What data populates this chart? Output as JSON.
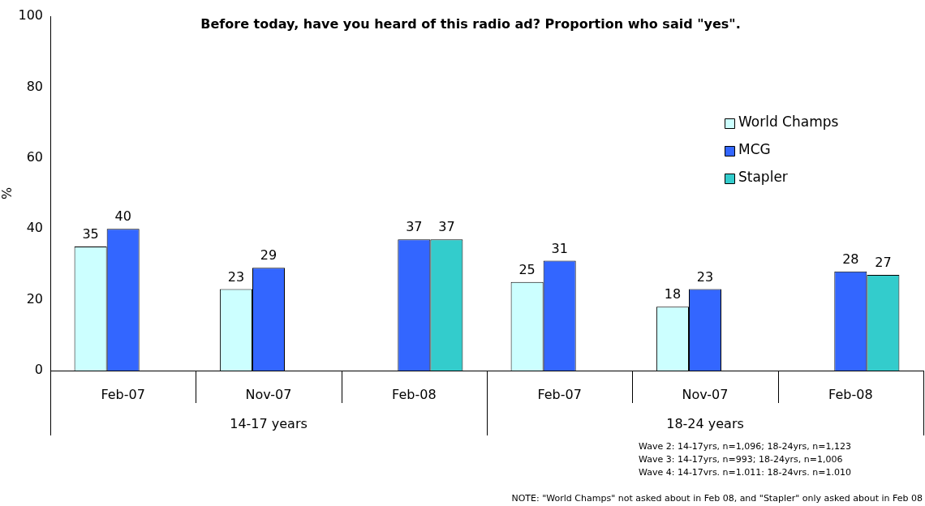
{
  "chart_data": {
    "type": "bar",
    "title": "Before today, have you heard of this radio ad? Proportion who said \"yes\".",
    "ylabel": "%",
    "categories": [
      "Feb-07",
      "Nov-07",
      "Feb-08",
      "Feb-07",
      "Nov-07",
      "Feb-08"
    ],
    "series": [
      {
        "name": "World Champs",
        "color": "#ccffff",
        "values": [
          35,
          23,
          null,
          25,
          18,
          null
        ]
      },
      {
        "name": "MCG",
        "color": "#3366ff",
        "values": [
          40,
          29,
          37,
          31,
          23,
          28
        ]
      },
      {
        "name": "Stapler",
        "color": "#33cccc",
        "values": [
          null,
          null,
          37,
          null,
          null,
          27
        ]
      }
    ],
    "ylim": [
      0,
      100
    ],
    "yticks": [
      0,
      20,
      40,
      60,
      80,
      100
    ],
    "grid": false,
    "legend": "right",
    "data_labels": true,
    "annotations": [
      "14-17 years",
      "18-24 years",
      "Wave 2: 14-17yrs, n=1,096; 18-24yrs, n=1,123",
      "Wave 3: 14-17yrs, n=993; 18-24yrs, n=1,006",
      "Wave 4: 14-17vrs. n=1.011: 18-24vrs. n=1.010",
      "NOTE: \"World Champs\" not asked about in Feb 08, and \"Stapler\" only asked about in Feb 08"
    ]
  }
}
